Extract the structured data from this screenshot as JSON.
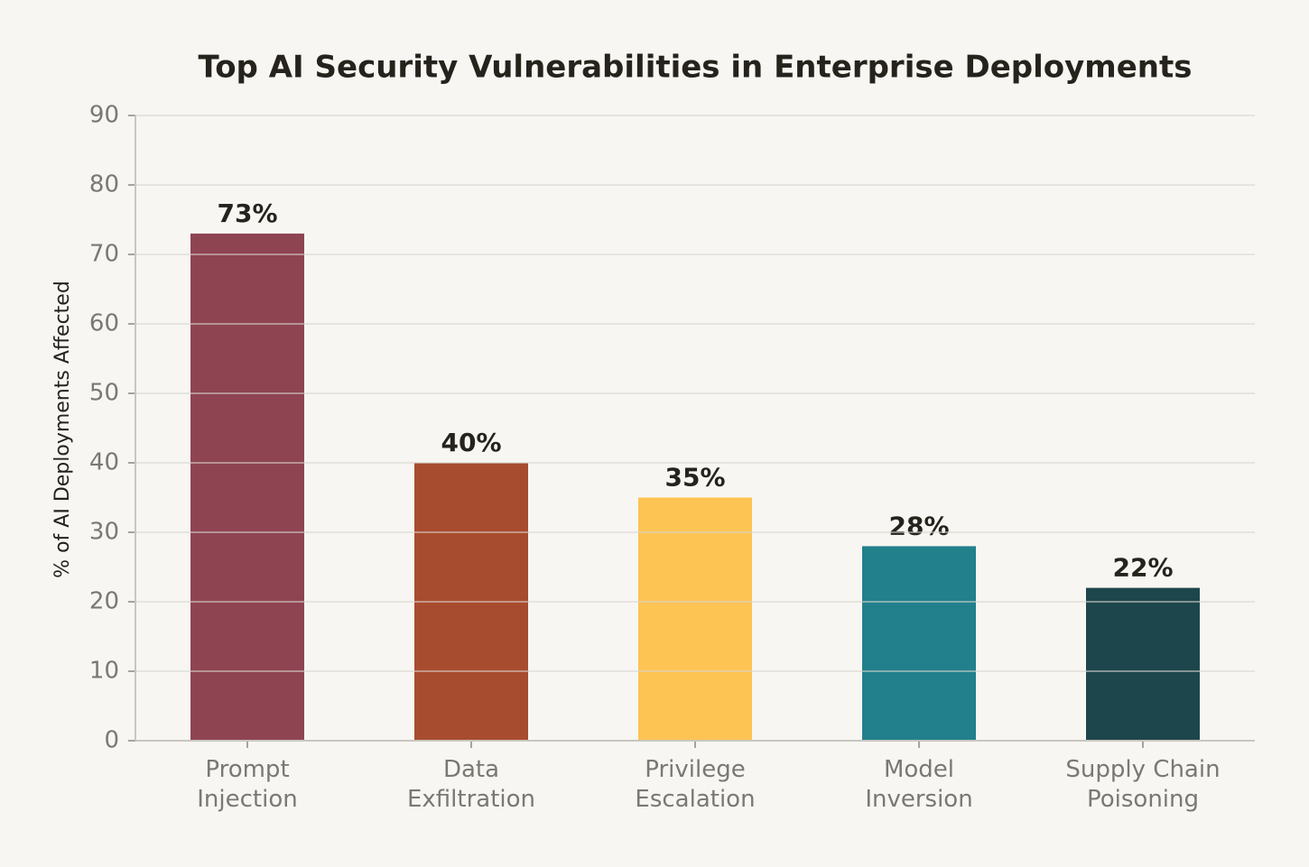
{
  "chart_data": {
    "type": "bar",
    "title": "Top AI Security Vulnerabilities in Enterprise Deployments",
    "y_label": "% of AI Deployments Affected",
    "categories": [
      "Prompt\nInjection",
      "Data\nExfiltration",
      "Privilege\nEscalation",
      "Model\nInversion",
      "Supply Chain\nPoisoning"
    ],
    "values": [
      73,
      40,
      35,
      28,
      22
    ],
    "value_labels": [
      "73%",
      "40%",
      "35%",
      "28%",
      "22%"
    ],
    "colors": [
      "#8f4452",
      "#a84c2f",
      "#fdc454",
      "#21808c",
      "#1d464c"
    ],
    "ylim": [
      0,
      90
    ],
    "yticks": [
      0,
      10,
      20,
      30,
      40,
      50,
      60,
      70,
      80,
      90
    ],
    "grid": true
  }
}
